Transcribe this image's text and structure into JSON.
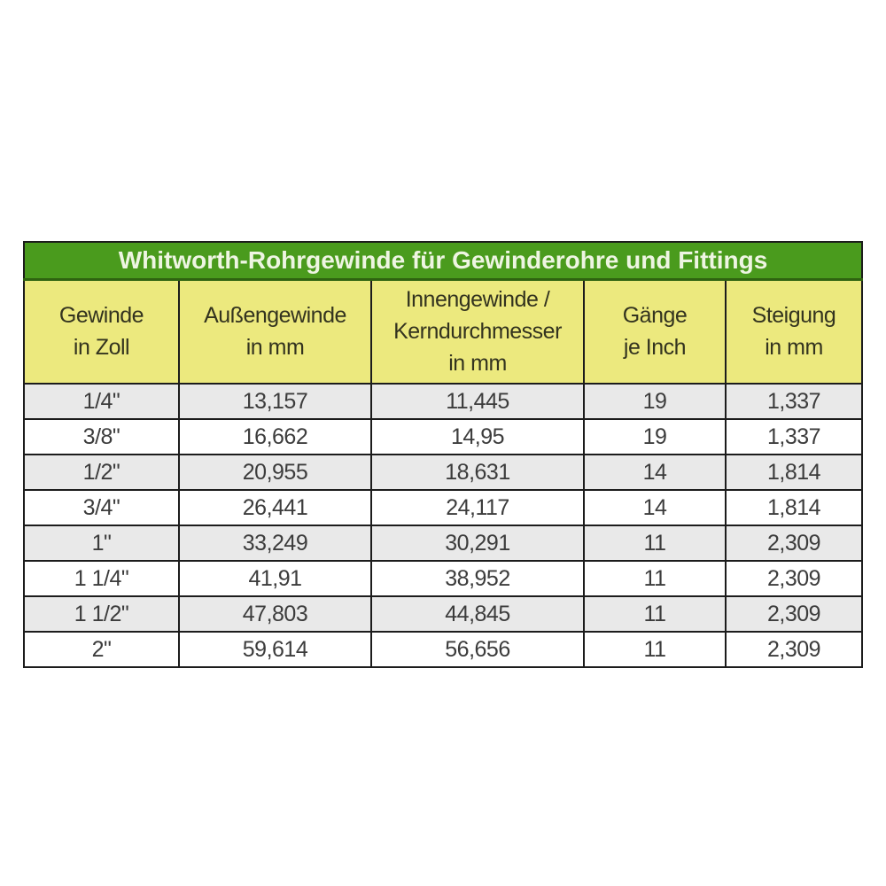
{
  "table": {
    "title": "Whitworth-Rohrgewinde für Gewinderohre und Fittings",
    "columns": [
      {
        "label": "Gewinde\nin Zoll"
      },
      {
        "label": "Außengewinde\nin mm"
      },
      {
        "label": "Innengewinde /\nKerndurchmesser\nin mm"
      },
      {
        "label": "Gänge\nje Inch"
      },
      {
        "label": "Steigung\nin mm"
      }
    ],
    "rows": [
      [
        "1/4\"",
        "13,157",
        "11,445",
        "19",
        "1,337"
      ],
      [
        "3/8\"",
        "16,662",
        "14,95",
        "19",
        "1,337"
      ],
      [
        "1/2\"",
        "20,955",
        "18,631",
        "14",
        "1,814"
      ],
      [
        "3/4\"",
        "26,441",
        "24,117",
        "14",
        "1,814"
      ],
      [
        "1\"",
        "33,249",
        "30,291",
        "11",
        "2,309"
      ],
      [
        "1 1/4\"",
        "41,91",
        "38,952",
        "11",
        "2,309"
      ],
      [
        "1 1/2\"",
        "47,803",
        "44,845",
        "11",
        "2,309"
      ],
      [
        "2\"",
        "59,614",
        "56,656",
        "11",
        "2,309"
      ]
    ]
  },
  "colors": {
    "title_background": "#4a9b1d",
    "title_text": "#eef5e2",
    "header_background": "#ece97e",
    "row_alternate_background": "#e9e9e9",
    "row_background": "#ffffff",
    "grid_border": "#1c1c1c",
    "cell_text": "#3c3c3c"
  },
  "chart_data": {
    "type": "table",
    "title": "Whitworth-Rohrgewinde für Gewinderohre und Fittings",
    "columns": [
      "Gewinde in Zoll",
      "Außengewinde in mm",
      "Innengewinde / Kerndurchmesser in mm",
      "Gänge je Inch",
      "Steigung in mm"
    ],
    "rows": [
      [
        "1/4\"",
        "13,157",
        "11,445",
        "19",
        "1,337"
      ],
      [
        "3/8\"",
        "16,662",
        "14,95",
        "19",
        "1,337"
      ],
      [
        "1/2\"",
        "20,955",
        "18,631",
        "14",
        "1,814"
      ],
      [
        "3/4\"",
        "26,441",
        "24,117",
        "14",
        "1,814"
      ],
      [
        "1\"",
        "33,249",
        "30,291",
        "11",
        "2,309"
      ],
      [
        "1 1/4\"",
        "41,91",
        "38,952",
        "11",
        "2,309"
      ],
      [
        "1 1/2\"",
        "47,803",
        "44,845",
        "11",
        "2,309"
      ],
      [
        "2\"",
        "59,614",
        "56,656",
        "11",
        "2,309"
      ]
    ]
  }
}
